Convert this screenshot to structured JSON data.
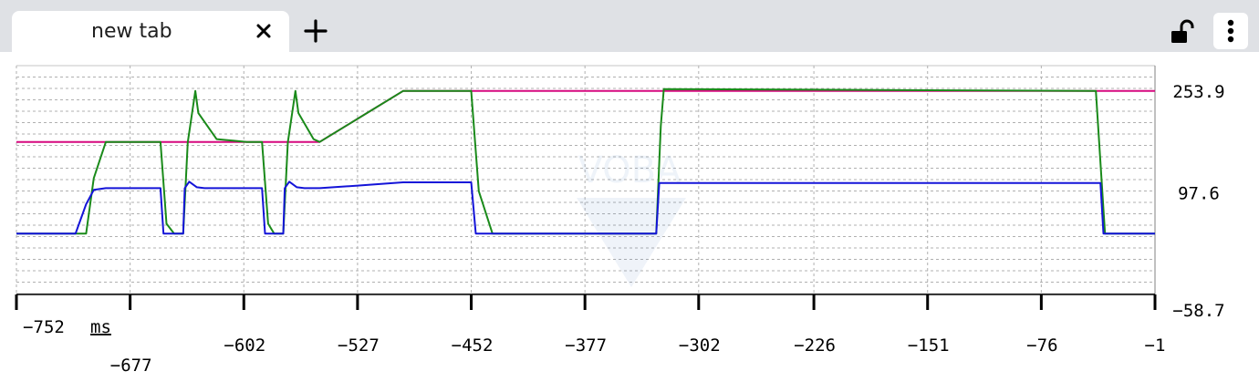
{
  "tab": {
    "title": "new tab"
  },
  "chart_data": {
    "type": "line",
    "title": "",
    "x_unit": "ms",
    "xlim": [
      -752,
      -1
    ],
    "ylim": [
      -58.7,
      292.9
    ],
    "grid": true,
    "x_ticks": [
      -752,
      -677,
      -602,
      -527,
      -452,
      -377,
      -302,
      -226,
      -151,
      -76,
      -1
    ],
    "y_ticks": [
      253.9,
      97.6,
      -58.7
    ],
    "watermark": "VOBA",
    "colors": {
      "magenta": "#d6087e",
      "green": "#1a8a1a",
      "blue": "#1414d8"
    },
    "series": [
      {
        "color": "#d6087e",
        "x": [
          -752,
          -552,
          -497,
          -1
        ],
        "y": [
          175.7,
          175.7,
          253.9,
          253.9
        ]
      },
      {
        "color": "#1a8a1a",
        "x": [
          -752,
          -706,
          -701,
          -693,
          -687,
          -657,
          -653,
          -648,
          -647,
          -642,
          -639,
          -634,
          -632,
          -620,
          -600,
          -590,
          -586,
          -582,
          -581,
          -576,
          -573,
          -568,
          -566,
          -556,
          -552,
          -497,
          -452,
          -447,
          -438,
          -330,
          -327,
          -325,
          -40,
          -34,
          -1
        ],
        "y": [
          34.9,
          34.9,
          120,
          175.7,
          175.7,
          175.7,
          50,
          34.9,
          34.9,
          34.9,
          175,
          253.9,
          220,
          180,
          175.7,
          175.7,
          50,
          34.9,
          34.9,
          34.9,
          175,
          253.9,
          220,
          180,
          175.7,
          253.9,
          253.9,
          100,
          34.9,
          34.9,
          200,
          256.9,
          253.9,
          34.9,
          34.9
        ]
      },
      {
        "color": "#1414d8",
        "x": [
          -752,
          -713,
          -706,
          -701,
          -693,
          -657,
          -655,
          -648,
          -642,
          -641,
          -638,
          -633,
          -628,
          -590,
          -588,
          -582,
          -576,
          -575,
          -572,
          -567,
          -562,
          -552,
          -527,
          -497,
          -452,
          -449,
          -330,
          -328,
          -37,
          -35,
          -1
        ],
        "y": [
          34.9,
          34.9,
          80,
          102,
          104.6,
          104.6,
          34.9,
          34.9,
          34.9,
          104.6,
          114.6,
          106,
          104.6,
          104.6,
          34.9,
          34.9,
          34.9,
          104.6,
          114.6,
          106,
          104.6,
          104.6,
          108.6,
          113.6,
          113.6,
          34.9,
          34.9,
          112.6,
          112.6,
          34.9,
          34.9
        ]
      }
    ]
  }
}
